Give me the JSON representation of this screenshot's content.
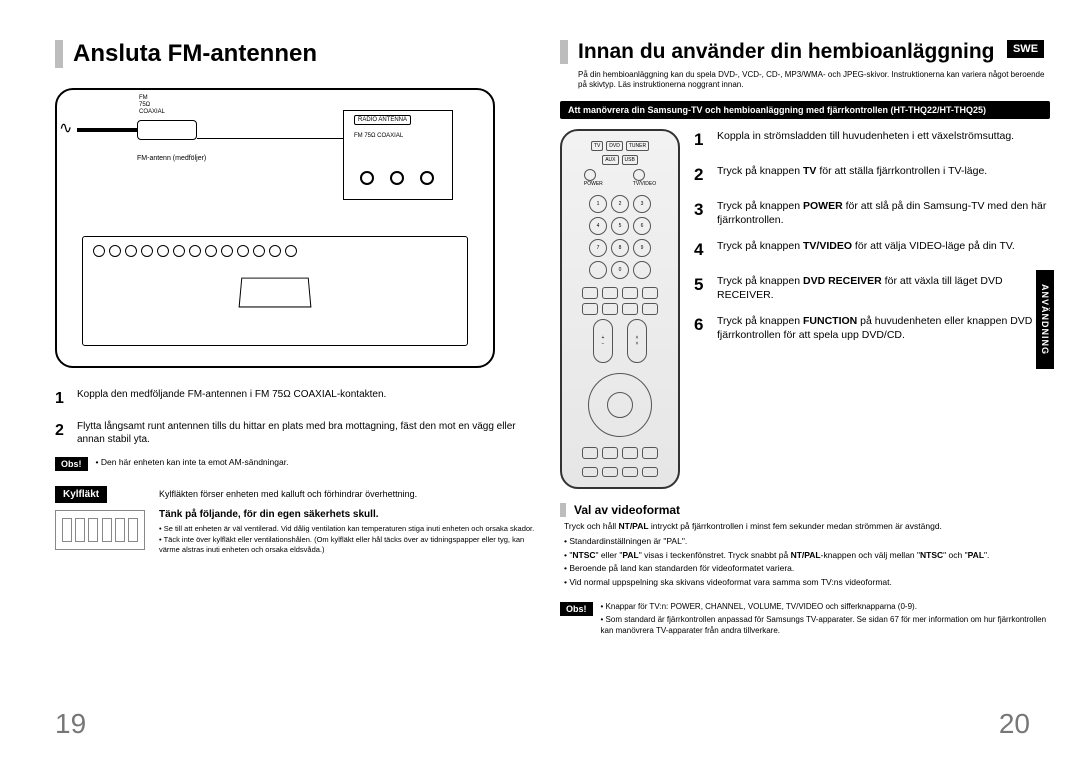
{
  "left": {
    "title": "Ansluta FM-antennen",
    "diagram": {
      "panel_label": "RADIO ANTENNA",
      "fm_lines": "FM\n75Ω\nCOAXIAL",
      "caption": "FM-antenn (medföljer)"
    },
    "steps": [
      {
        "n": "1",
        "text": "Koppla den medföljande FM-antennen i FM 75Ω COAXIAL-kontakten."
      },
      {
        "n": "2",
        "text": "Flytta långsamt runt antennen  tills du hittar en plats med bra mottagning, fäst den mot en vägg eller annan stabil yta."
      }
    ],
    "obs_label": "Obs!",
    "obs_items": [
      "Den här enheten kan inte ta emot AM-sändningar."
    ],
    "kyl": {
      "badge": "Kylfläkt",
      "text": "Kylfläkten förser enheten med kalluft och förhindrar överhettning.",
      "safety_head": "Tänk på följande, för din egen säkerhets skull.",
      "safety_items": [
        "Se till att enheten är väl ventilerad. Vid dålig ventilation kan temperaturen stiga inuti enheten och orsaka skador.",
        "Täck inte över kylfläkt eller ventilationshålen. (Om kylfläkt eller hål täcks över av tidningspapper eller tyg, kan värme alstras inuti enheten och orsaka eldsvåda.)"
      ]
    },
    "page_num": "19"
  },
  "right": {
    "title": "Innan du använder din hembioanläggning",
    "swe": "SWE",
    "intro": "På din hembioanläggning kan du spela DVD-, VCD-, CD-, MP3/WMA- och JPEG-skivor. Instruktionerna kan variera något beroende på skivtyp. Läs instruktionerna noggrant innan.",
    "black_bar": "Att manövrera din Samsung-TV och hembioanläggning med fjärrkontrollen (HT-THQ22/HT-THQ25)",
    "remote": {
      "top": [
        "TV",
        "DVD",
        "TUNER",
        "AUX",
        "USB"
      ],
      "power": "POWER",
      "tvvideo": "TV/VIDEO",
      "nums": [
        "1",
        "2",
        "3",
        "4",
        "5",
        "6",
        "7",
        "8",
        "9",
        "0"
      ]
    },
    "steps": [
      {
        "n": "1",
        "html": "Koppla in strömsladden till huvudenheten i ett växelströmsuttag."
      },
      {
        "n": "2",
        "html": "Tryck på knappen <b>TV</b> för att ställa fjärrkontrollen i TV-läge."
      },
      {
        "n": "3",
        "html": "Tryck på knappen <b>POWER</b> för att slå på din Samsung-TV med den här fjärrkontrollen."
      },
      {
        "n": "4",
        "html": "Tryck på knappen <b>TV/VIDEO</b> för att välja VIDEO-läge på din TV."
      },
      {
        "n": "5",
        "html": "Tryck på knappen <b>DVD RECEIVER</b> för att växla till läget DVD RECEIVER."
      },
      {
        "n": "6",
        "html": "Tryck på knappen <b>FUNCTION</b> på huvudenheten eller knappen DVD på fjärrkontrollen för att spela upp DVD/CD."
      }
    ],
    "side_tab": "ANVÄNDNING",
    "sub": {
      "head": "Val av videoformat",
      "lead": "Tryck och håll <b>NT/PAL</b> intryckt på fjärrkontrollen i minst fem sekunder medan strömmen är avstängd.",
      "items": [
        "Standardinställningen är \"PAL\".",
        "\"<b>NTSC</b>\" eller \"<b>PAL</b>\" visas i teckenfönstret. Tryck snabbt på <b>NT/PAL</b>-knappen och välj mellan \"<b>NTSC</b>\" och \"<b>PAL</b>\".",
        "Beroende på land kan standarden för videoformatet variera.",
        "Vid normal uppspelning ska skivans videoformat vara samma som TV:ns videoformat."
      ]
    },
    "obs_label": "Obs!",
    "obs_items": [
      "Knappar för TV:n: POWER, CHANNEL, VOLUME, TV/VIDEO och sifferknapparna (0-9).",
      "Som standard är fjärrkontrollen anpassad för Samsungs TV-apparater. Se sidan 67 för mer information om hur fjärrkontrollen kan manövrera TV-apparater från andra tillverkare."
    ],
    "page_num": "20"
  },
  "colors": {
    "rule": "#bdbdbd",
    "pagenum": "#777777",
    "black": "#000000",
    "white": "#ffffff"
  }
}
